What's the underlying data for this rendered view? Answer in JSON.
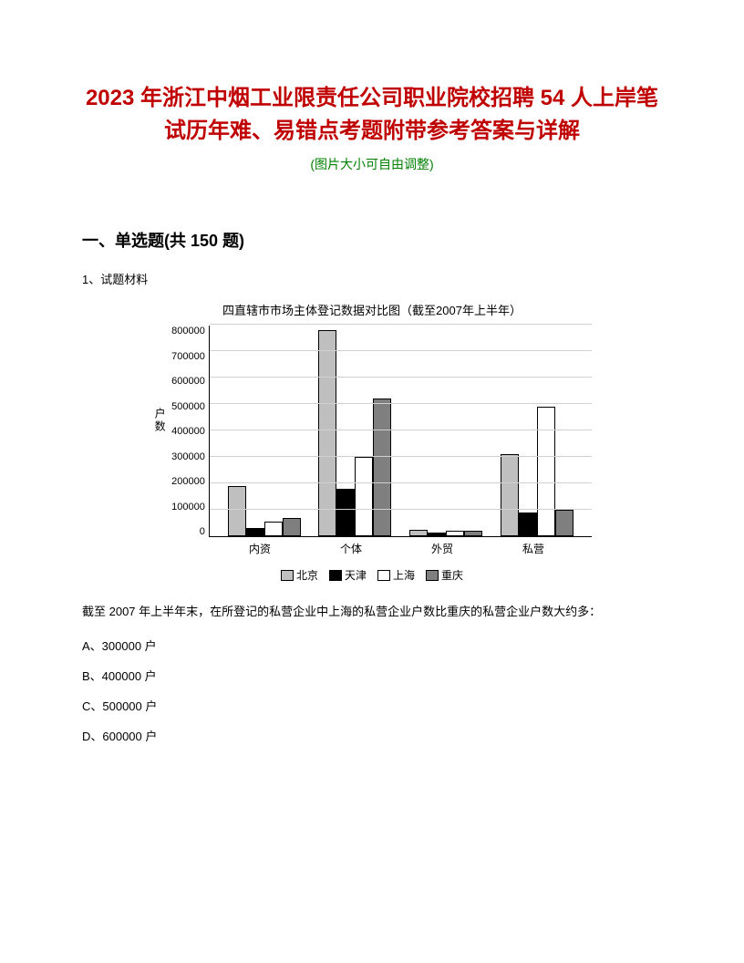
{
  "title": "2023 年浙江中烟工业限责任公司职业院校招聘 54 人上岸笔试历年难、易错点考题附带参考答案与详解",
  "subtitle": "(图片大小可自由调整)",
  "section_header": "一、单选题(共 150 题)",
  "question_label": "1、试题材料",
  "chart": {
    "title": "四直辖市市场主体登记数据对比图（截至2007年上半年）",
    "y_label": "户数",
    "y_max": 800000,
    "y_ticks": [
      "800000",
      "700000",
      "600000",
      "500000",
      "400000",
      "300000",
      "200000",
      "100000",
      "0"
    ],
    "categories": [
      "内资",
      "个体",
      "外贸",
      "私营"
    ],
    "series": [
      {
        "name": "北京",
        "color": "#bfbfbf",
        "values": [
          190000,
          780000,
          25000,
          310000
        ]
      },
      {
        "name": "天津",
        "color": "#000000",
        "values": [
          30000,
          180000,
          15000,
          90000
        ]
      },
      {
        "name": "上海",
        "color": "#ffffff",
        "values": [
          55000,
          300000,
          20000,
          490000
        ]
      },
      {
        "name": "重庆",
        "color": "#7f7f7f",
        "values": [
          70000,
          520000,
          20000,
          100000
        ]
      }
    ],
    "grid_color": "#d0d0d0"
  },
  "question_text": "截至 2007 年上半年末，在所登记的私营企业中上海的私营企业户数比重庆的私营企业户数大约多：",
  "options": {
    "a": "A、300000 户",
    "b": "B、400000 户",
    "c": "C、500000 户",
    "d": "D、600000 户"
  }
}
